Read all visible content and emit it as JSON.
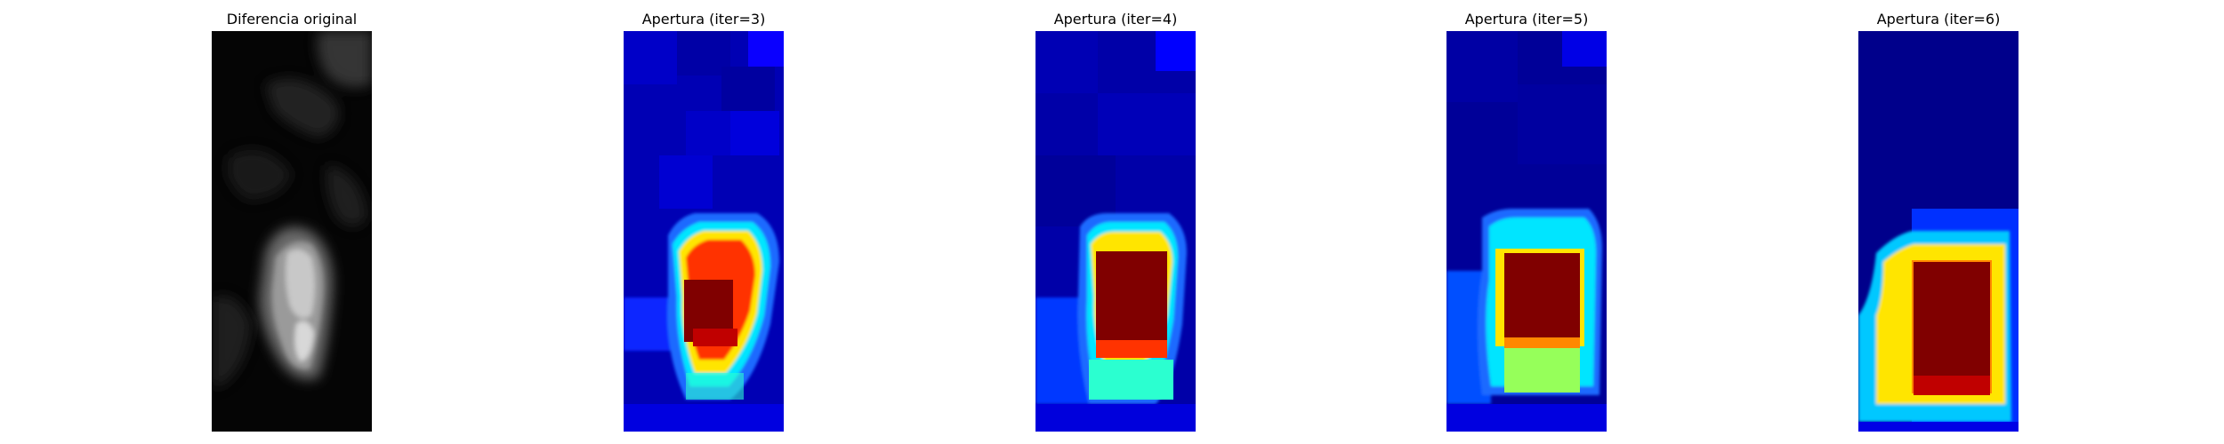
{
  "panels": [
    {
      "title": "Diferencia original",
      "kind": "grayscale-difference",
      "colormap": "gray"
    },
    {
      "title": "Apertura (iter=3)",
      "kind": "morphological-opening",
      "colormap": "jet"
    },
    {
      "title": "Apertura (iter=4)",
      "kind": "morphological-opening",
      "colormap": "jet"
    },
    {
      "title": "Apertura (iter=5)",
      "kind": "morphological-opening",
      "colormap": "jet"
    },
    {
      "title": "Apertura (iter=6)",
      "kind": "morphological-opening",
      "colormap": "jet"
    }
  ],
  "colors": {
    "jet_dark_blue": "#00008b",
    "jet_blue": "#0000ff",
    "jet_light_blue": "#1e6bff",
    "jet_cyan": "#00e5ff",
    "jet_teal": "#2bffd0",
    "jet_green": "#96ff5a",
    "jet_yellow": "#ffe500",
    "jet_orange": "#ff8800",
    "jet_red": "#ff3300",
    "jet_dark_red": "#800000",
    "gray_black": "#050505",
    "gray_white": "#d8d8d8"
  }
}
